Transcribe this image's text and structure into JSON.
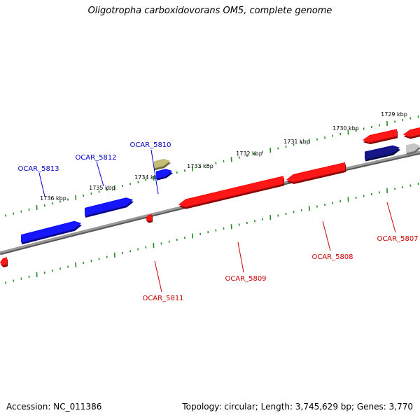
{
  "title": "Oligotropha carboxidovorans OM5, complete genome",
  "footer": {
    "accession": "Accession: NC_011386",
    "summary": "Topology: circular; Length: 3,745,629 bp; Genes: 3,770"
  },
  "colors": {
    "plus_strand": "#0000ff",
    "plus_strand_alt": "#00007f",
    "minus_strand": "#ff0000",
    "other_feature": "#bdb76b",
    "backbone": "#808080",
    "ticks": "#228b22"
  },
  "scale": {
    "tick_labels": [
      "1736 kbp",
      "1735 kbp",
      "1734 kbp",
      "1733 kbp",
      "1732 kbp",
      "1731 kbp",
      "1730 kbp",
      "1729 kbp"
    ]
  },
  "genes": [
    {
      "label": "OCAR_5813",
      "strand": "plus"
    },
    {
      "label": "OCAR_5812",
      "strand": "plus"
    },
    {
      "label": "OCAR_5810",
      "strand": "plus"
    },
    {
      "label": "OCAR_5811",
      "strand": "minus"
    },
    {
      "label": "OCAR_5809",
      "strand": "minus"
    },
    {
      "label": "OCAR_5808",
      "strand": "minus"
    },
    {
      "label": "OCAR_5807",
      "strand": "minus"
    }
  ]
}
